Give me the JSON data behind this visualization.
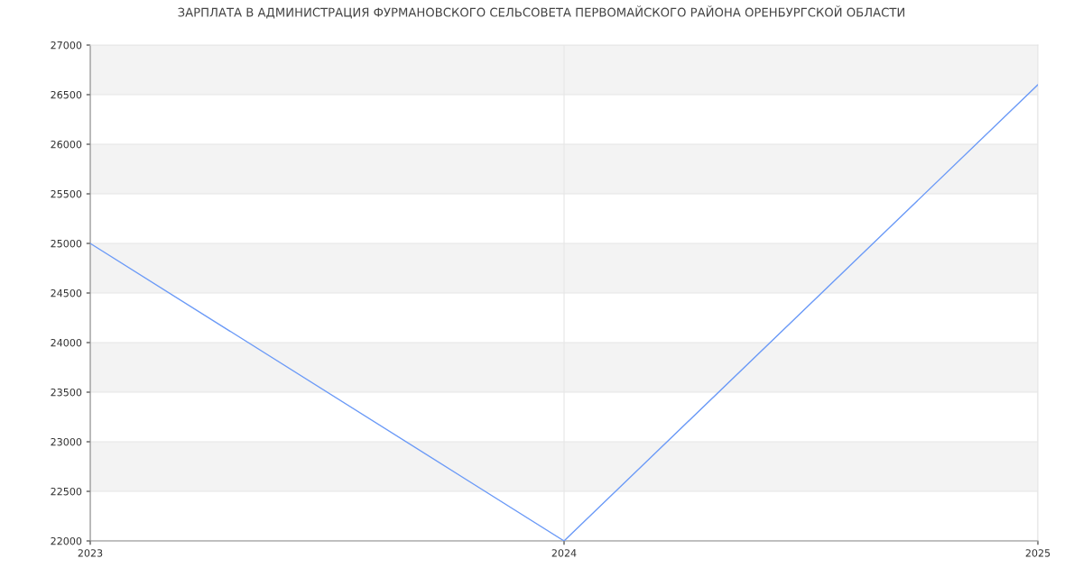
{
  "chart_data": {
    "type": "line",
    "title": "ЗАРПЛАТА В АДМИНИСТРАЦИЯ ФУРМАНОВСКОГО СЕЛЬСОВЕТА ПЕРВОМАЙСКОГО РАЙОНА ОРЕНБУРГСКОЙ ОБЛАСТИ",
    "x": [
      2023,
      2024,
      2025
    ],
    "series": [
      {
        "color": "#6b9af7",
        "values": [
          25000,
          22000,
          26600
        ]
      }
    ],
    "xlim": [
      2023,
      2025
    ],
    "xticks": [
      2023,
      2024,
      2025
    ],
    "ylim": [
      22000,
      27000
    ],
    "yticks": [
      22000,
      22500,
      23000,
      23500,
      24000,
      24500,
      25000,
      25500,
      26000,
      26500,
      27000
    ],
    "bands": [
      {
        "axis": "y",
        "from": 22500,
        "to": 23000,
        "color": "#f3f3f3"
      },
      {
        "axis": "y",
        "from": 23500,
        "to": 24000,
        "color": "#f3f3f3"
      },
      {
        "axis": "y",
        "from": 24500,
        "to": 25000,
        "color": "#f3f3f3"
      },
      {
        "axis": "y",
        "from": 25500,
        "to": 26000,
        "color": "#f3f3f3"
      },
      {
        "axis": "y",
        "from": 26500,
        "to": 27000,
        "color": "#f3f3f3"
      }
    ],
    "grid": true,
    "marker": "none",
    "line_style": "solid"
  }
}
